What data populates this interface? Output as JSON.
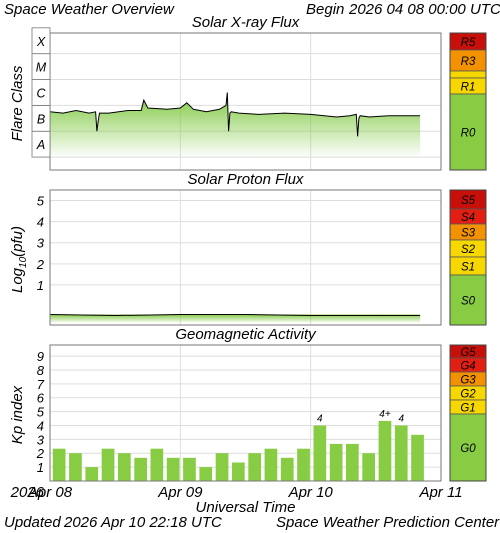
{
  "header": {
    "title": "Space Weather Overview",
    "begin_label": "Begin",
    "begin_time": "2026 04 08 00:00 UTC"
  },
  "footer": {
    "updated_label": "Updated",
    "updated_time": "2026 Apr 10 22:18 UTC",
    "source": "Space Weather Prediction Center"
  },
  "colors": {
    "plot_fill": "#7dc73d",
    "trace": "#000000",
    "grid": "#dddddd",
    "scale_green": "#88cc44",
    "scale_yellow": "#f6d800",
    "scale_orange": "#f39200",
    "scale_red": "#e31e12",
    "scale_dark_red": "#c8100a"
  },
  "xaxis": {
    "label": "Universal Time",
    "year": "2026",
    "ticks": [
      "Apr 08",
      "Apr 09",
      "Apr 10",
      "Apr 11"
    ],
    "range_days": [
      0,
      3
    ]
  },
  "chart_data": [
    {
      "type": "line",
      "title": "Solar X-ray Flux",
      "ylabel": "Flare Class",
      "y_categories": [
        "A",
        "B",
        "C",
        "M",
        "X"
      ],
      "y_scale": "log10 W/m2, one decade per class",
      "ylim": [
        -8.5,
        -3.2
      ],
      "x_unit": "days since 2026-04-08 00:00 UTC",
      "x_extent": [
        0,
        2.84
      ],
      "series": [
        {
          "x": [
            0,
            0.1,
            0.2,
            0.3,
            0.35,
            0.36,
            0.37,
            0.38,
            0.45,
            0.6,
            0.7,
            0.72,
            0.75,
            0.9,
            1.0,
            1.05,
            1.1,
            1.2,
            1.3,
            1.35,
            1.36,
            1.37,
            1.38,
            1.39,
            1.45,
            1.6,
            1.8,
            2.0,
            2.2,
            2.3,
            2.35,
            2.36,
            2.37,
            2.38,
            2.45,
            2.6,
            2.84
          ],
          "y": [
            -6.25,
            -6.3,
            -6.2,
            -6.3,
            -6.25,
            -7.0,
            -6.6,
            -6.3,
            -6.3,
            -6.2,
            -6.2,
            -5.8,
            -6.1,
            -6.15,
            -6.1,
            -5.9,
            -6.15,
            -6.25,
            -6.15,
            -6.0,
            -5.5,
            -7.0,
            -6.3,
            -6.25,
            -6.3,
            -6.35,
            -6.3,
            -6.35,
            -6.45,
            -6.4,
            -6.35,
            -7.2,
            -6.5,
            -6.4,
            -6.45,
            -6.4,
            -6.4
          ]
        }
      ],
      "scale": [
        {
          "label": "R5",
          "color": "#c8100a"
        },
        {
          "label": "R3",
          "color": "#f39200"
        },
        {
          "label": "",
          "color": "#f6d800"
        },
        {
          "label": "R1",
          "color": "#f6d800"
        },
        {
          "label": "R0",
          "color": "#88cc44"
        }
      ]
    },
    {
      "type": "line",
      "title": "Solar Proton Flux",
      "ylabel": "Log10(pfu)",
      "y_ticks": [
        1,
        2,
        3,
        4,
        5
      ],
      "ylim": [
        -0.9,
        5.5
      ],
      "series": [
        {
          "x": [
            0,
            0.5,
            1.0,
            1.5,
            2.0,
            2.5,
            2.84
          ],
          "y": [
            -0.4,
            -0.45,
            -0.4,
            -0.4,
            -0.45,
            -0.45,
            -0.45
          ]
        }
      ],
      "scale": [
        {
          "label": "S5",
          "color": "#c8100a"
        },
        {
          "label": "S4",
          "color": "#e31e12"
        },
        {
          "label": "S3",
          "color": "#f39200"
        },
        {
          "label": "S2",
          "color": "#f6d800"
        },
        {
          "label": "S1",
          "color": "#f6d800"
        },
        {
          "label": "S0",
          "color": "#88cc44"
        }
      ]
    },
    {
      "type": "bar",
      "title": "Geomagnetic Activity",
      "ylabel": "Kp index",
      "y_ticks": [
        1,
        2,
        3,
        4,
        5,
        6,
        7,
        8,
        9
      ],
      "ylim": [
        0,
        9.8
      ],
      "values": [
        2.33,
        2.0,
        1.0,
        2.33,
        2.0,
        1.67,
        2.33,
        1.67,
        1.67,
        1.0,
        2.0,
        1.33,
        2.0,
        2.33,
        1.67,
        2.33,
        4.0,
        2.67,
        2.67,
        2.0,
        4.33,
        4.0,
        3.33
      ],
      "data_labels": [
        "",
        "",
        "",
        "",
        "",
        "",
        "",
        "",
        "",
        "",
        "",
        "",
        "",
        "",
        "",
        "",
        "4",
        "",
        "",
        "",
        "4+",
        "4",
        ""
      ],
      "scale": [
        {
          "label": "G5",
          "color": "#c8100a"
        },
        {
          "label": "G4",
          "color": "#e31e12"
        },
        {
          "label": "G3",
          "color": "#f39200"
        },
        {
          "label": "G2",
          "color": "#f6d800"
        },
        {
          "label": "G1",
          "color": "#f6d800"
        },
        {
          "label": "G0",
          "color": "#88cc44"
        }
      ]
    }
  ]
}
